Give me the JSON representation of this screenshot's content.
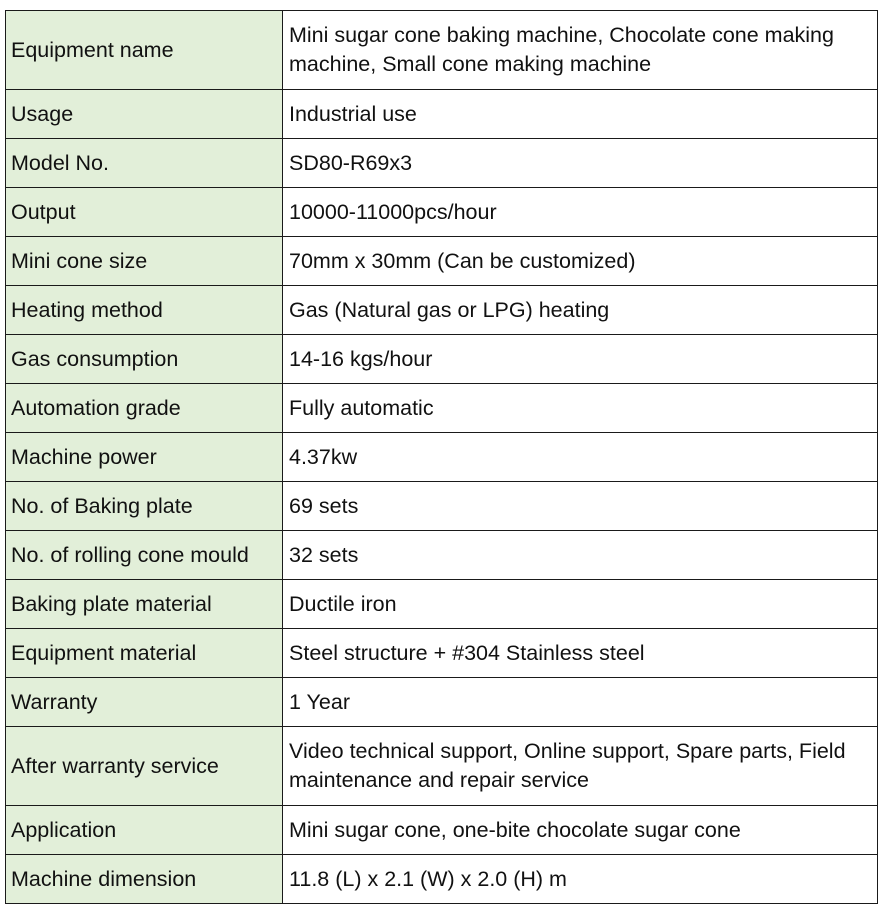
{
  "specs": [
    {
      "label": "Equipment name",
      "value": "Mini sugar cone baking machine, Chocolate cone making machine, Small cone making machine"
    },
    {
      "label": "Usage",
      "value": "Industrial use"
    },
    {
      "label": "Model No.",
      "value": "SD80-R69x3"
    },
    {
      "label": "Output",
      "value": "10000-11000pcs/hour"
    },
    {
      "label": "Mini cone size",
      "value": "70mm x 30mm (Can be customized)"
    },
    {
      "label": "Heating method",
      "value": "Gas (Natural gas or LPG) heating"
    },
    {
      "label": "Gas consumption",
      "value": "14-16 kgs/hour"
    },
    {
      "label": "Automation grade",
      "value": "Fully automatic"
    },
    {
      "label": "Machine power",
      "value": "4.37kw"
    },
    {
      "label": "No. of Baking plate",
      "value": "69 sets"
    },
    {
      "label": "No. of rolling cone mould",
      "value": "32 sets"
    },
    {
      "label": "Baking plate material",
      "value": "Ductile iron"
    },
    {
      "label": "Equipment material",
      "value": "Steel structure + #304 Stainless steel"
    },
    {
      "label": "Warranty",
      "value": "1 Year"
    },
    {
      "label": "After warranty service",
      "value": "Video technical support, Online support, Spare parts, Field maintenance and repair service"
    },
    {
      "label": "Application",
      "value": "Mini sugar cone, one-bite chocolate sugar cone"
    },
    {
      "label": "Machine dimension",
      "value": "11.8 (L) x 2.1 (W) x 2.0 (H) m"
    }
  ]
}
